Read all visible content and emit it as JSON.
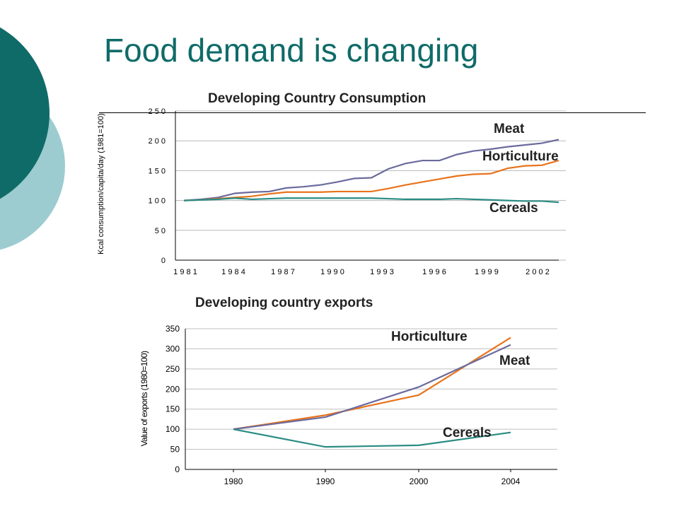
{
  "slide": {
    "title": "Food demand is changing",
    "colors": {
      "dark_teal": "#0f6b68",
      "light_teal": "#9cccd0"
    }
  },
  "chart_data": [
    {
      "type": "line",
      "title": "Developing Country Consumption",
      "ylabel": "Kcal consumption/capita/day (1981=100)",
      "xlabel": "",
      "ylim": [
        0,
        250
      ],
      "yticks": [
        0,
        50,
        100,
        150,
        200,
        250
      ],
      "ytick_labels": [
        "0",
        "5 0",
        "1 0 0",
        "1 5 0",
        "2 0 0",
        "2 5 0"
      ],
      "xlim": [
        1981,
        2003
      ],
      "xticks": [
        1981,
        1984,
        1987,
        1990,
        1993,
        1996,
        1999,
        2002
      ],
      "xtick_labels": [
        "1 9 8 1",
        "1 9 8 4",
        "1 9 8 7",
        "1 9 9 0",
        "1 9 9 3",
        "1 9 9 6",
        "1 9 9 9",
        "2 0 0 2"
      ],
      "grid": true,
      "x": [
        1981,
        1982,
        1983,
        1984,
        1985,
        1986,
        1987,
        1988,
        1989,
        1990,
        1991,
        1992,
        1993,
        1994,
        1995,
        1996,
        1997,
        1998,
        1999,
        2000,
        2001,
        2002,
        2003
      ],
      "series": [
        {
          "name": "Meat",
          "color": "#6b6b9e",
          "values": [
            100,
            102,
            105,
            112,
            114,
            115,
            121,
            123,
            126,
            131,
            137,
            138,
            153,
            162,
            167,
            167,
            177,
            183,
            186,
            190,
            193,
            196,
            202
          ]
        },
        {
          "name": "Horticulture",
          "color": "#e8731c",
          "values": [
            100,
            101,
            103,
            105,
            107,
            111,
            114,
            114,
            114,
            115,
            115,
            115,
            120,
            126,
            131,
            136,
            141,
            144,
            145,
            154,
            158,
            159,
            167
          ]
        },
        {
          "name": "Cereals",
          "color": "#2a8c84",
          "values": [
            100,
            101,
            102,
            104,
            102,
            103,
            104,
            104,
            104,
            104,
            104,
            104,
            103,
            102,
            102,
            102,
            103,
            102,
            101,
            100,
            99,
            99,
            97
          ]
        }
      ],
      "series_labels": [
        "Meat",
        "Horticulture",
        "Cereals"
      ]
    },
    {
      "type": "line",
      "title": "Developing country exports",
      "ylabel": "Value of exports (1980=100)",
      "xlabel": "",
      "ylim": [
        0,
        350
      ],
      "yticks": [
        0,
        50,
        100,
        150,
        200,
        250,
        300,
        350
      ],
      "ytick_labels": [
        "0",
        "50",
        "100",
        "150",
        "200",
        "250",
        "300",
        "350"
      ],
      "categories": [
        "1980",
        "1990",
        "2000",
        "2004"
      ],
      "grid": true,
      "x": [
        1980,
        1990,
        2000,
        2004
      ],
      "series": [
        {
          "name": "Horticulture",
          "color": "#e8731c",
          "values": [
            100,
            135,
            185,
            328
          ]
        },
        {
          "name": "Meat",
          "color": "#6b6b9e",
          "values": [
            100,
            130,
            205,
            310
          ]
        },
        {
          "name": "Cereals",
          "color": "#2a8c84",
          "values": [
            100,
            56,
            60,
            92
          ]
        }
      ],
      "series_labels": [
        "Horticulture",
        "Meat",
        "Cereals"
      ]
    }
  ]
}
